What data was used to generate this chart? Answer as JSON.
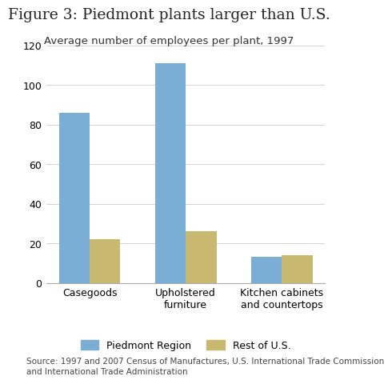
{
  "title": "Figure 3: Piedmont plants larger than U.S.",
  "subtitle": "Average number of employees per plant, 1997",
  "source": "Source: 1997 and 2007 Census of Manufactures, U.S. International Trade Commission\nand International Trade Administration",
  "categories": [
    "Casegoods",
    "Upholstered\nfurniture",
    "Kitchen cabinets\nand countertops"
  ],
  "piedmont_values": [
    86,
    111,
    13
  ],
  "us_values": [
    22,
    26,
    14
  ],
  "piedmont_color": "#7aaed4",
  "us_color": "#c8b870",
  "ylim": [
    0,
    120
  ],
  "yticks": [
    0,
    20,
    40,
    60,
    80,
    100,
    120
  ],
  "legend_labels": [
    "Piedmont Region",
    "Rest of U.S."
  ],
  "bar_width": 0.32,
  "background_color": "#ffffff",
  "title_fontsize": 13.5,
  "subtitle_fontsize": 9.5,
  "source_fontsize": 7.5,
  "tick_fontsize": 9,
  "legend_fontsize": 9
}
